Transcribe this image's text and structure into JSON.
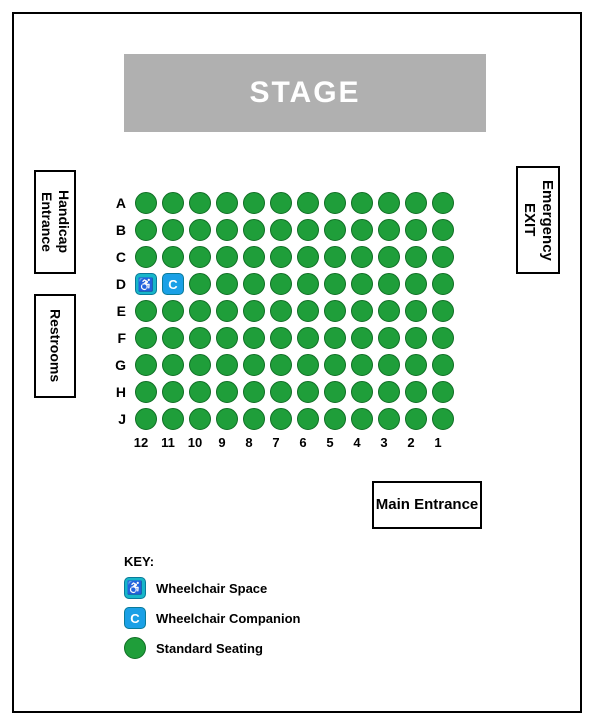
{
  "stage": {
    "label": "STAGE",
    "bg": "#b0b0b0",
    "fg": "#ffffff",
    "font_size": 30
  },
  "side_labels": {
    "handicap_entrance": "Handicap Entrance",
    "restrooms": "Restrooms",
    "emergency_exit": "Emergency EXIT",
    "main_entrance": "Main Entrance"
  },
  "colors": {
    "standard_seat": "#1f9e3a",
    "standard_seat_border": "#0f6e24",
    "wheelchair_bg": "#17b6c9",
    "companion_bg": "#1aa0e6",
    "special_border": "#0a7a99",
    "frame": "#000000",
    "background": "#ffffff"
  },
  "seating": {
    "rows": [
      "A",
      "B",
      "C",
      "D",
      "E",
      "F",
      "G",
      "H",
      "J"
    ],
    "cols": [
      12,
      11,
      10,
      9,
      8,
      7,
      6,
      5,
      4,
      3,
      2,
      1
    ],
    "seat_size": 22,
    "seat_gap": 5,
    "special": {
      "D": {
        "12": {
          "type": "wheelchair",
          "glyph": "♿"
        },
        "11": {
          "type": "companion",
          "glyph": "C"
        }
      }
    }
  },
  "key": {
    "title": "KEY:",
    "items": [
      {
        "type": "wheelchair",
        "label": "Wheelchair Space",
        "glyph": "♿"
      },
      {
        "type": "companion",
        "label": "Wheelchair Companion",
        "glyph": "C"
      },
      {
        "type": "standard",
        "label": "Standard Seating"
      }
    ]
  }
}
